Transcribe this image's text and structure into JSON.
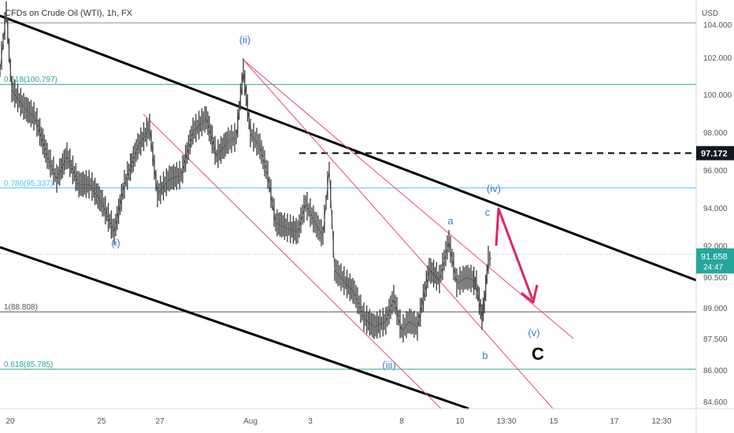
{
  "header": {
    "symbol_title": "CFDs on Crude Oil (WTI), 1h, FX",
    "currency": "USD"
  },
  "chart_data": {
    "type": "candlestick",
    "title": "CFDs on Crude Oil (WTI), 1h, FX",
    "ylabel": "USD",
    "ylim": [
      83.8,
      105.2
    ],
    "y_ticks": [
      "104.000",
      "102.000",
      "100.000",
      "98.000",
      "96.000",
      "94.000",
      "92.000",
      "90.500",
      "89.000",
      "87.500",
      "86.000",
      "84.600"
    ],
    "x_ticks": [
      "20",
      "25",
      "27",
      "Aug",
      "3",
      "8",
      "10",
      "13:30",
      "15",
      "17",
      "12:30"
    ],
    "grid": false,
    "price_tags": [
      {
        "label": "97.172",
        "value": 97.172,
        "style": "dark"
      },
      {
        "label": "91.658",
        "sublabel": "24:47",
        "value": 91.658,
        "style": "green"
      }
    ],
    "fib_levels": [
      {
        "label": "0.618(100.797)",
        "value": 100.797,
        "color": "#26a69a"
      },
      {
        "label": "0.786(95.337)",
        "value": 95.337,
        "color": "#4fc3f7"
      },
      {
        "label": "1(88.808)",
        "value": 88.808,
        "color": "#555555"
      },
      {
        "label": "0.618(85.785)",
        "value": 85.785,
        "color": "#26a69a"
      }
    ],
    "wave_labels": [
      "(ii)",
      "(i)",
      "(iii)",
      "(iv)",
      "(v)",
      "a",
      "b",
      "c",
      "C"
    ],
    "price_path": [
      [
        0,
        101.5
      ],
      [
        8,
        104.6
      ],
      [
        15,
        100.5
      ],
      [
        30,
        99.6
      ],
      [
        45,
        99.0
      ],
      [
        60,
        97.0
      ],
      [
        72,
        95.8
      ],
      [
        85,
        97.0
      ],
      [
        100,
        95.5
      ],
      [
        115,
        95.5
      ],
      [
        130,
        94.5
      ],
      [
        145,
        93.0
      ],
      [
        158,
        95.5
      ],
      [
        175,
        97.5
      ],
      [
        190,
        98.5
      ],
      [
        200,
        95.0
      ],
      [
        215,
        95.8
      ],
      [
        230,
        96.0
      ],
      [
        245,
        98.3
      ],
      [
        262,
        99.0
      ],
      [
        275,
        97.0
      ],
      [
        290,
        97.8
      ],
      [
        300,
        98.0
      ],
      [
        309,
        101.5
      ],
      [
        318,
        98.2
      ],
      [
        330,
        97.5
      ],
      [
        340,
        96.0
      ],
      [
        350,
        93.5
      ],
      [
        365,
        93.2
      ],
      [
        378,
        93.0
      ],
      [
        388,
        94.5
      ],
      [
        400,
        93.5
      ],
      [
        410,
        92.8
      ],
      [
        418,
        96.3
      ],
      [
        425,
        91.0
      ],
      [
        435,
        90.5
      ],
      [
        450,
        89.8
      ],
      [
        462,
        88.5
      ],
      [
        475,
        88.0
      ],
      [
        490,
        88.3
      ],
      [
        500,
        89.5
      ],
      [
        510,
        87.8
      ],
      [
        520,
        88.3
      ],
      [
        530,
        88.0
      ],
      [
        545,
        91.0
      ],
      [
        558,
        90.5
      ],
      [
        570,
        92.5
      ],
      [
        580,
        90.3
      ],
      [
        592,
        90.6
      ],
      [
        600,
        90.5
      ],
      [
        605,
        90.2
      ],
      [
        612,
        88.5
      ],
      [
        615,
        89.3
      ],
      [
        620,
        91.5
      ],
      [
        624,
        91.658
      ]
    ]
  }
}
